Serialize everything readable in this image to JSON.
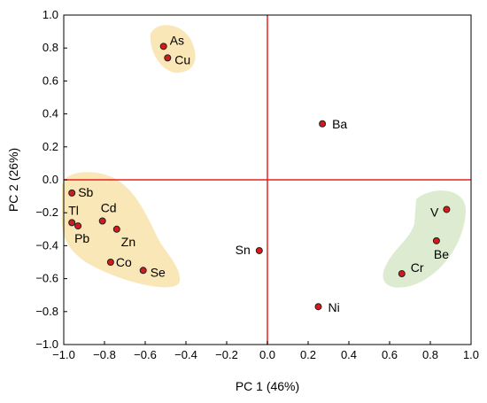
{
  "chart_data": {
    "type": "scatter",
    "xlabel": "PC 1 (46%)",
    "ylabel": "PC 2 (26%)",
    "xlim": [
      -1.0,
      1.0
    ],
    "ylim": [
      -1.0,
      1.0
    ],
    "xticks": [
      "-1.0",
      "-0.8",
      "-0.6",
      "-0.4",
      "-0.2",
      "0.0",
      "0.2",
      "0.4",
      "0.6",
      "0.8",
      "1.0"
    ],
    "yticks": [
      "1.0",
      "0.8",
      "0.6",
      "0.4",
      "0.2",
      "0.0",
      "-0.2",
      "-0.4",
      "-0.6",
      "-0.8",
      "-1.0"
    ],
    "grid": false,
    "reference_lines": {
      "x": 0.0,
      "y": 0.0,
      "color": "#e8201e"
    },
    "colors": {
      "point_fill": "#d7191c",
      "point_stroke": "#222222",
      "cluster_yellow": "#fae7b8",
      "cluster_green": "#ddecd0"
    },
    "points": [
      {
        "label": "As",
        "x": -0.51,
        "y": 0.81
      },
      {
        "label": "Cu",
        "x": -0.49,
        "y": 0.74
      },
      {
        "label": "Ba",
        "x": 0.27,
        "y": 0.34
      },
      {
        "label": "Sb",
        "x": -0.96,
        "y": -0.08
      },
      {
        "label": "Tl",
        "x": -0.96,
        "y": -0.26
      },
      {
        "label": "Cd",
        "x": -0.81,
        "y": -0.25
      },
      {
        "label": "Pb",
        "x": -0.93,
        "y": -0.28
      },
      {
        "label": "Zn",
        "x": -0.74,
        "y": -0.3
      },
      {
        "label": "Co",
        "x": -0.77,
        "y": -0.5
      },
      {
        "label": "Se",
        "x": -0.61,
        "y": -0.55
      },
      {
        "label": "Sn",
        "x": -0.04,
        "y": -0.43
      },
      {
        "label": "Ni",
        "x": 0.25,
        "y": -0.77
      },
      {
        "label": "V",
        "x": 0.88,
        "y": -0.18
      },
      {
        "label": "Be",
        "x": 0.83,
        "y": -0.37
      },
      {
        "label": "Cr",
        "x": 0.66,
        "y": -0.57
      }
    ]
  }
}
